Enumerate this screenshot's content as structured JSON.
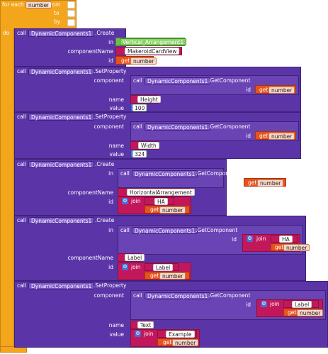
{
  "loop": {
    "for_each": "for each",
    "variable": "number",
    "from_label": "from",
    "from": "1",
    "to_label": "to",
    "to": "5",
    "by_label": "by",
    "by": "1",
    "do_label": "do"
  },
  "common": {
    "call": "call",
    "component": "DynamicComponents1",
    "create": ".Create",
    "set_property": ".SetProperty",
    "get_component": ".GetComponent",
    "in": "in",
    "component_name": "componentName",
    "id": "id",
    "component_label": "component",
    "name": "name",
    "value": "value",
    "get": "get",
    "join": "join"
  },
  "block1": {
    "in_target": "Vertical_Arrangement1",
    "component_name": "MakeroidCardView",
    "id_var": "number"
  },
  "block2": {
    "id_var": "number",
    "name": "Height",
    "value": "100"
  },
  "block3": {
    "id_var": "number",
    "name": "Width",
    "value": "324"
  },
  "block4": {
    "id_var": "number",
    "component_name": "HorizontalArrangement",
    "join_text": "HA",
    "join_var": "number"
  },
  "block5": {
    "join_text": "HA",
    "join_var": "number",
    "component_name": "Label",
    "id_text": "Label",
    "id_var": "number"
  },
  "block6": {
    "join_text": "Label",
    "join_var": "number",
    "name": "Text",
    "value_text": "Example",
    "value_var": "number"
  }
}
